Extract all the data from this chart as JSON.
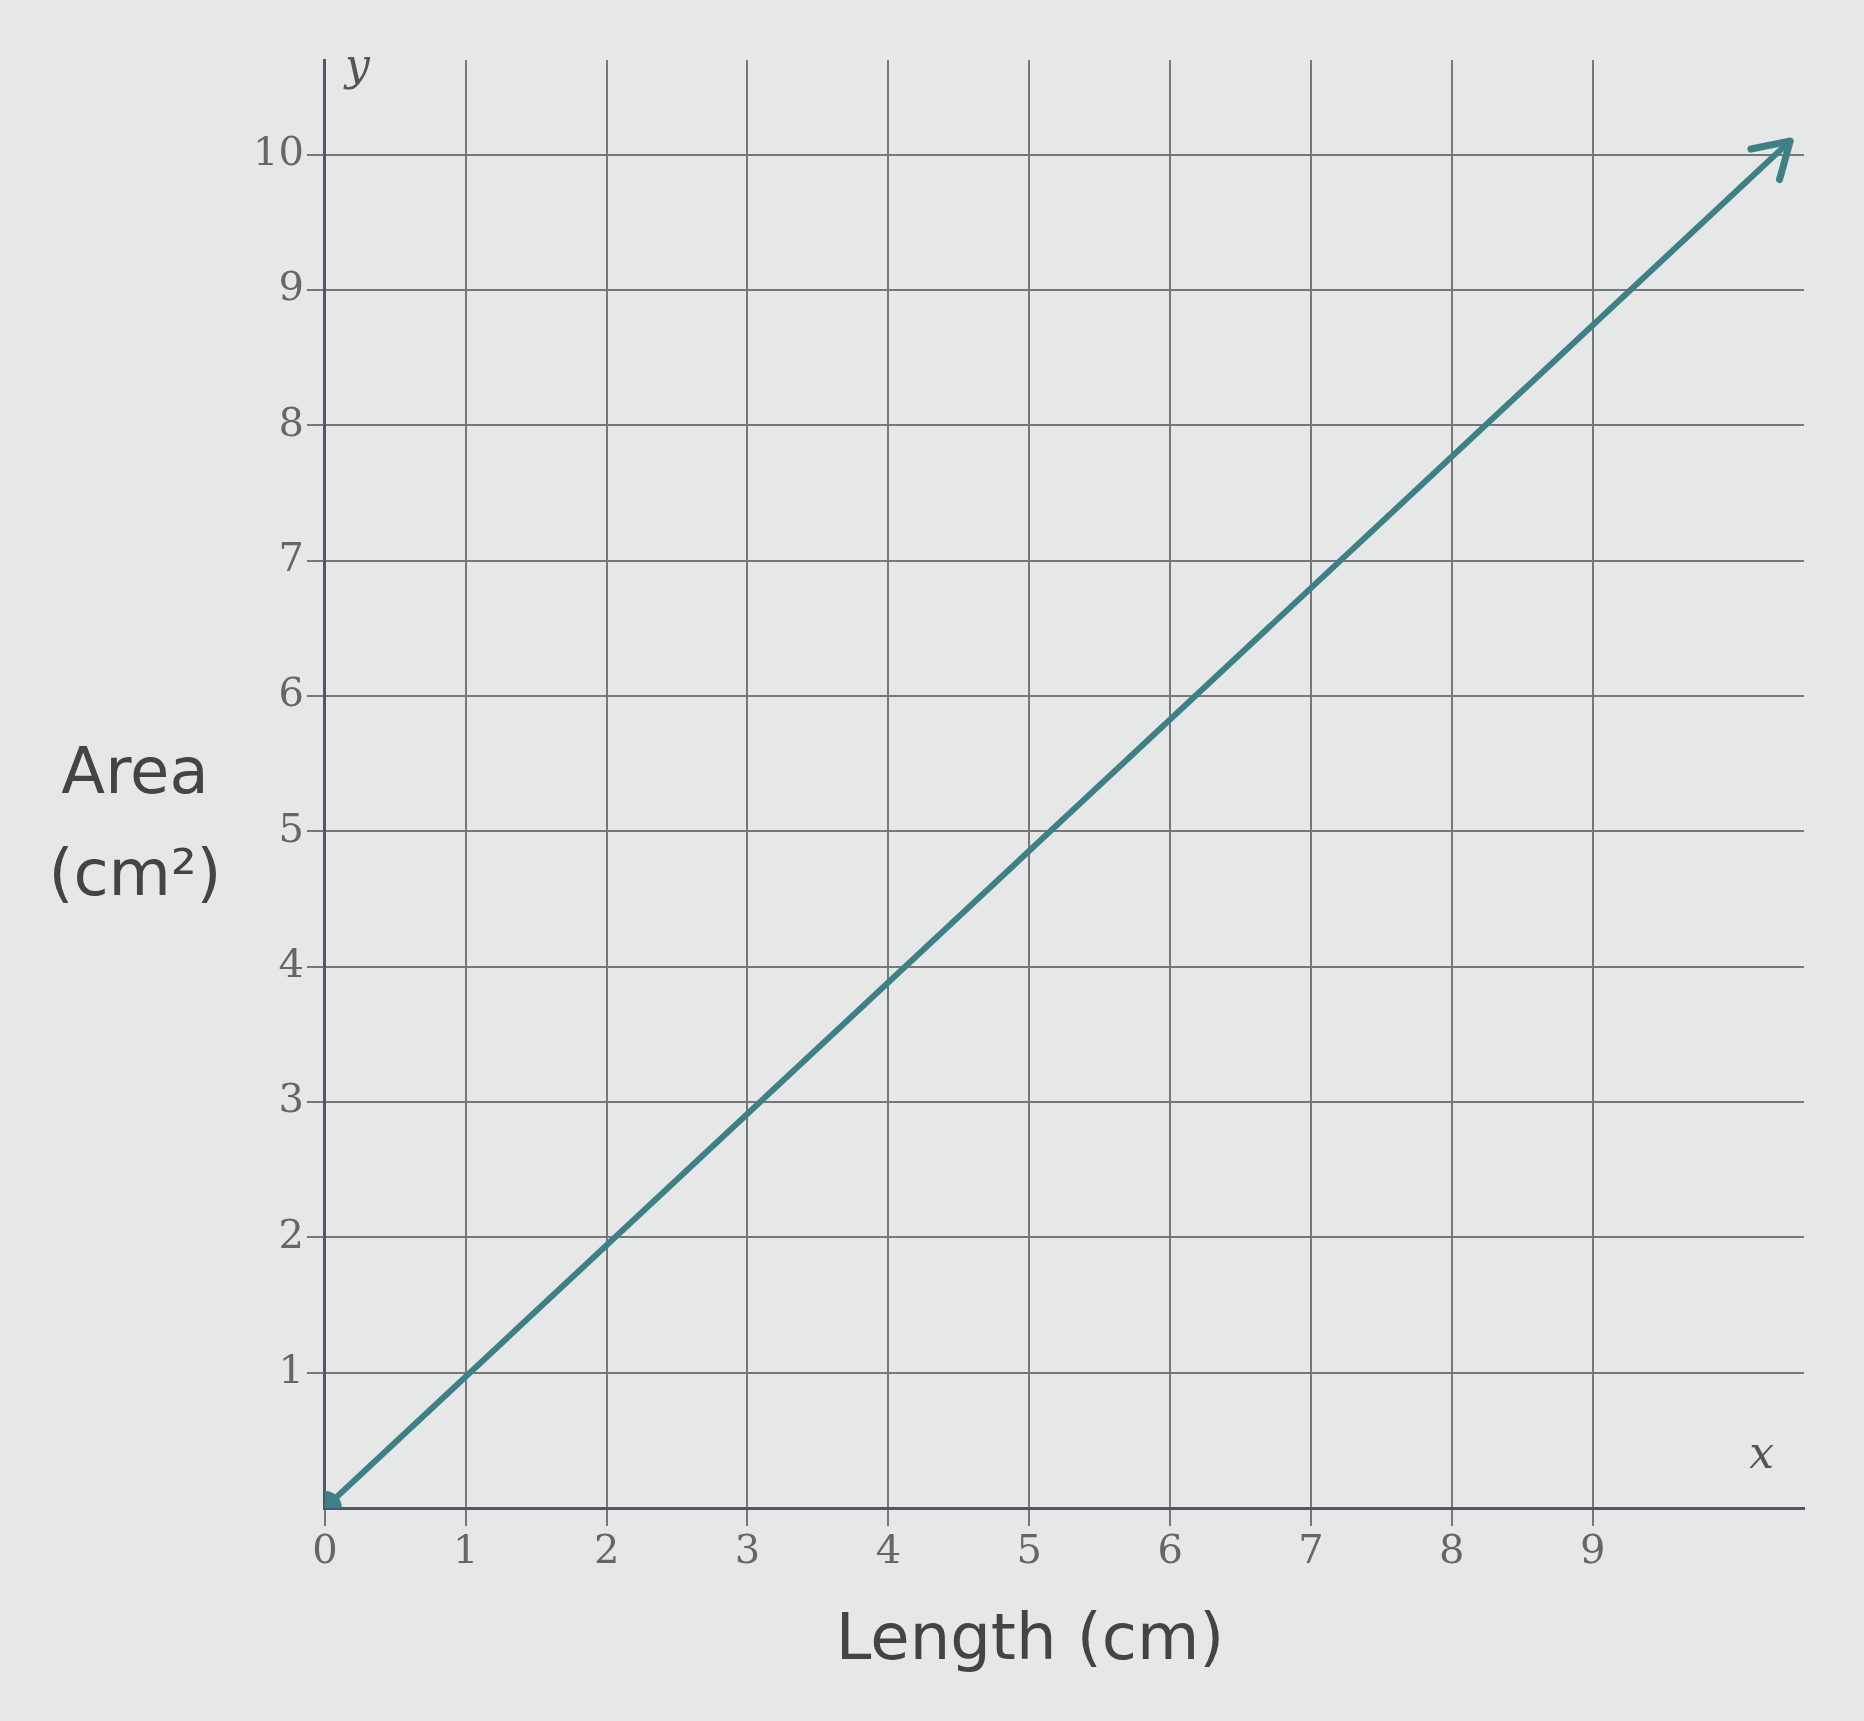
{
  "chart_data": {
    "type": "line",
    "xlabel": "Length (cm)",
    "ylabel": "Area (cm²)",
    "annotations": [
      "y",
      "x"
    ],
    "x": [
      0,
      10.4
    ],
    "series": [
      {
        "color": "#3f7f86",
        "values": [
          0,
          10.1
        ]
      }
    ],
    "xlim": [
      0,
      10.5
    ],
    "ylim": [
      0,
      10.7
    ],
    "xticks": [
      0,
      1,
      2,
      3,
      4,
      5,
      6,
      7,
      8,
      9
    ],
    "yticks": [
      1,
      2,
      3,
      4,
      5,
      6,
      7,
      8,
      9,
      10
    ],
    "grid": true,
    "legend": false,
    "marker": "circle",
    "line_style": "solid"
  }
}
